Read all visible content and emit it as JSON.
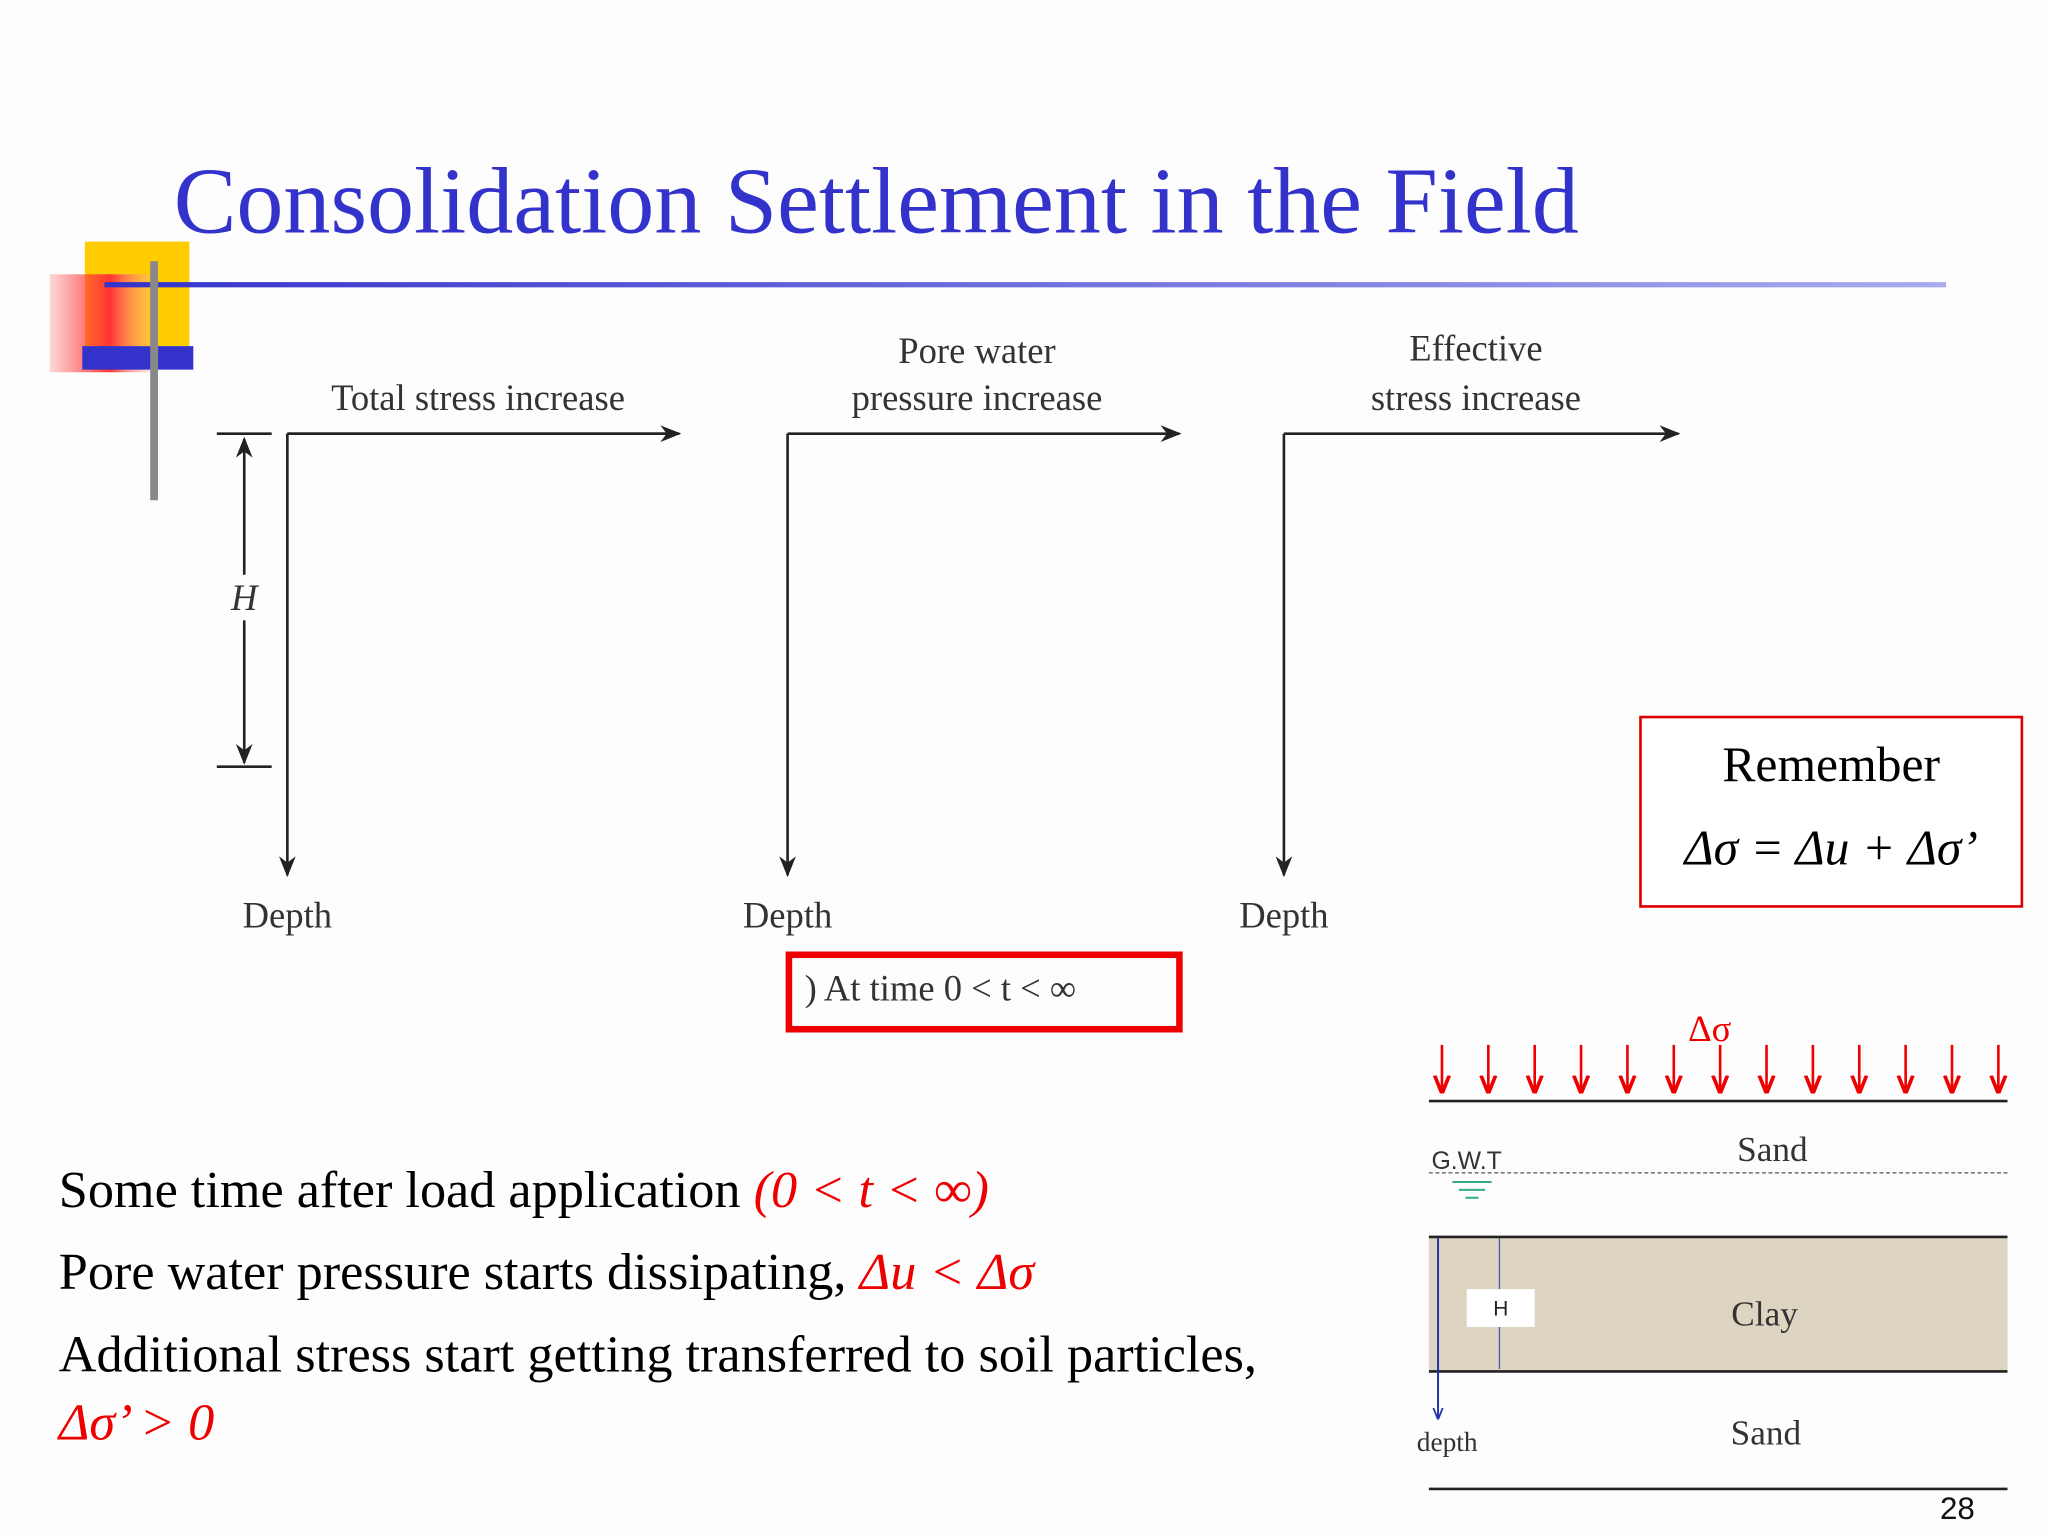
{
  "title": "Consolidation Settlement in the Field",
  "diagram": {
    "panels": [
      {
        "label": [
          "Total stress increase"
        ],
        "axis": "Depth"
      },
      {
        "label": [
          "Pore water",
          "pressure increase"
        ],
        "axis": "Depth"
      },
      {
        "label": [
          "Effective",
          "stress increase"
        ],
        "axis": "Depth"
      }
    ],
    "dimension": "H",
    "caption": ") At time 0 < t < ∞"
  },
  "remember": {
    "heading": "Remember",
    "equation": "Δσ = Δu + Δσ’"
  },
  "bullets": [
    {
      "text": "Some time after load application ",
      "emphasis": "(0 < t < ∞)"
    },
    {
      "text": "Pore water pressure starts dissipating, ",
      "emphasis": "Δu < Δσ"
    },
    {
      "text": "Additional stress start getting transferred to soil particles,",
      "emphasis": "Δσ’ > 0"
    }
  ],
  "soil": {
    "load": "Δσ",
    "gwt": "G.W.T",
    "layers": [
      "Sand",
      "Clay",
      "Sand"
    ],
    "thickness": "H",
    "depth": "depth"
  },
  "page_number": "28"
}
